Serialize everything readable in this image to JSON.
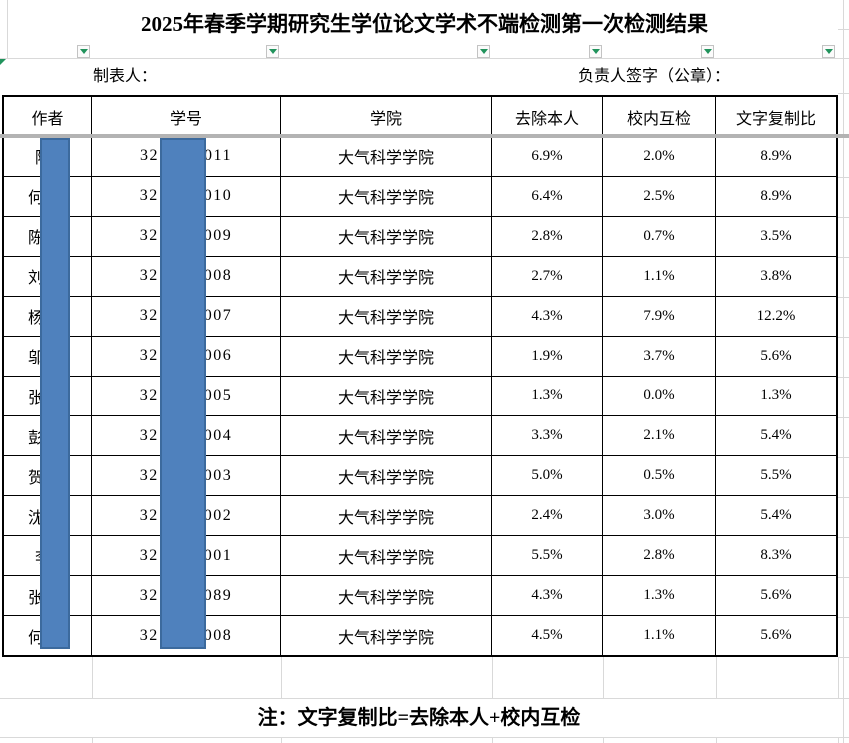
{
  "title": "2025年春季学期研究生学位论文学术不端检测第一次检测结果",
  "meta": {
    "maker_label": "制表人：",
    "signer_label": "负责人签字（公章）："
  },
  "columns": [
    "作者",
    "学号",
    "学院",
    "去除本人",
    "校内互检",
    "文字复制比"
  ],
  "rows": [
    {
      "author_visible": "陈",
      "author_chars": 2,
      "id_prefix": "32",
      "id_suffix": "011",
      "college": "大气科学学院",
      "exclude_self": "6.9%",
      "internal_check": "2.0%",
      "copy_ratio": "8.9%"
    },
    {
      "author_visible": "何",
      "author_chars": 3,
      "id_prefix": "32",
      "id_suffix": "010",
      "college": "大气科学学院",
      "exclude_self": "6.4%",
      "internal_check": "2.5%",
      "copy_ratio": "8.9%"
    },
    {
      "author_visible": "陈",
      "author_chars": 3,
      "id_prefix": "32",
      "id_suffix": "009",
      "college": "大气科学学院",
      "exclude_self": "2.8%",
      "internal_check": "0.7%",
      "copy_ratio": "3.5%"
    },
    {
      "author_visible": "刘",
      "author_chars": 3,
      "id_prefix": "32",
      "id_suffix": "008",
      "college": "大气科学学院",
      "exclude_self": "2.7%",
      "internal_check": "1.1%",
      "copy_ratio": "3.8%"
    },
    {
      "author_visible": "杨",
      "author_chars": 3,
      "id_prefix": "32",
      "id_suffix": "007",
      "college": "大气科学学院",
      "exclude_self": "4.3%",
      "internal_check": "7.9%",
      "copy_ratio": "12.2%"
    },
    {
      "author_visible": "邬",
      "author_chars": 3,
      "id_prefix": "32",
      "id_suffix": "006",
      "college": "大气科学学院",
      "exclude_self": "1.9%",
      "internal_check": "3.7%",
      "copy_ratio": "5.6%"
    },
    {
      "author_visible": "张",
      "author_chars": 3,
      "id_prefix": "32",
      "id_suffix": "005",
      "college": "大气科学学院",
      "exclude_self": "1.3%",
      "internal_check": "0.0%",
      "copy_ratio": "1.3%"
    },
    {
      "author_visible": "彭",
      "author_chars": 3,
      "id_prefix": "32",
      "id_suffix": "004",
      "college": "大气科学学院",
      "exclude_self": "3.3%",
      "internal_check": "2.1%",
      "copy_ratio": "5.4%"
    },
    {
      "author_visible": "贺",
      "author_chars": 3,
      "id_prefix": "32",
      "id_suffix": "003",
      "college": "大气科学学院",
      "exclude_self": "5.0%",
      "internal_check": "0.5%",
      "copy_ratio": "5.5%"
    },
    {
      "author_visible": "沈",
      "author_chars": 3,
      "id_prefix": "32",
      "id_suffix": "002",
      "college": "大气科学学院",
      "exclude_self": "2.4%",
      "internal_check": "3.0%",
      "copy_ratio": "5.4%"
    },
    {
      "author_visible": "李",
      "author_chars": 2,
      "id_prefix": "32",
      "id_suffix": "001",
      "college": "大气科学学院",
      "exclude_self": "5.5%",
      "internal_check": "2.8%",
      "copy_ratio": "8.3%"
    },
    {
      "author_visible": "张",
      "author_chars": 3,
      "id_prefix": "32",
      "id_suffix": "089",
      "college": "大气科学学院",
      "exclude_self": "4.3%",
      "internal_check": "1.3%",
      "copy_ratio": "5.6%"
    },
    {
      "author_visible": "何",
      "author_chars": 3,
      "id_prefix": "32",
      "id_suffix": "008",
      "college": "大气科学学院",
      "exclude_self": "4.5%",
      "internal_check": "1.1%",
      "copy_ratio": "5.6%"
    }
  ],
  "note": "注：文字复制比=去除本人+校内互检",
  "icons": {
    "filter_dropdown": "chevron-down",
    "cell_flag": "corner-triangle"
  },
  "colors": {
    "redaction_bar": "#4f81bd",
    "redaction_bar_border": "#3c6a9d",
    "filter_arrow_green": "#21935c",
    "frozen_split_line": "#b3b3b3",
    "grid_line": "#d9d9d9",
    "table_border": "#000000"
  }
}
